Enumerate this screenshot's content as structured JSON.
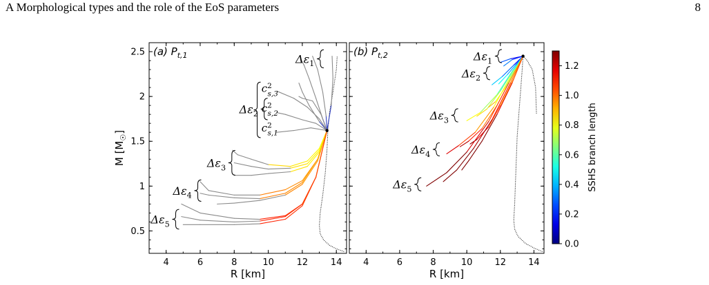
{
  "header": {
    "section": "A   Morphological types and the role of the EoS parameters",
    "page_number": "8"
  },
  "colorbar": {
    "label": "SSHS branch length",
    "ticks": [
      "0.0",
      "0.2",
      "0.4",
      "0.6",
      "0.8",
      "1.0",
      "1.2"
    ],
    "tick_values": [
      0.0,
      0.2,
      0.4,
      0.6,
      0.8,
      1.0,
      1.2
    ],
    "range": [
      0,
      1.3
    ],
    "colormap": "jet"
  },
  "chart_data": [
    {
      "type": "line",
      "panel_label": "(a) P",
      "panel_sub": "t,1",
      "xlabel": "R [km]",
      "ylabel": "M [M",
      "ylabel_sym": "☉",
      "ylabel_close": "]",
      "xlim": [
        3,
        14.6
      ],
      "ylim": [
        0.25,
        2.6
      ],
      "xticks": [
        4,
        6,
        8,
        10,
        12,
        14
      ],
      "yticks": [
        0.5,
        1,
        1.5,
        2,
        2.5
      ],
      "xtick_labels": [
        "4",
        "6",
        "8",
        "10",
        "12",
        "14"
      ],
      "ytick_labels": [
        "0.5",
        "1",
        "1.5",
        "2",
        "2.5"
      ],
      "transition_point": [
        13.45,
        1.62
      ],
      "annotations": [
        {
          "base": "Δε",
          "sub": "1",
          "x": 11.6,
          "y": 2.42
        },
        {
          "base": "Δε",
          "sub": "2",
          "x": 8.3,
          "y": 1.86
        },
        {
          "base": "Δε",
          "sub": "3",
          "x": 6.4,
          "y": 1.26
        },
        {
          "base": "Δε",
          "sub": "4",
          "x": 4.4,
          "y": 0.95
        },
        {
          "base": "Δε",
          "sub": "5",
          "x": 3.1,
          "y": 0.63
        }
      ],
      "sound_speed_labels": [
        {
          "base": "c",
          "sup": "2",
          "sub": "s,3",
          "x": 9.6,
          "y": 2.08
        },
        {
          "base": "c",
          "sup": "2",
          "sub": "s,2",
          "x": 9.6,
          "y": 1.86
        },
        {
          "base": "c",
          "sup": "2",
          "sub": "s,1",
          "x": 9.6,
          "y": 1.64
        }
      ],
      "hadronic_branch": [
        [
          14.45,
          0.27
        ],
        [
          14.0,
          0.3
        ],
        [
          13.6,
          0.34
        ],
        [
          13.25,
          0.4
        ],
        [
          13.05,
          0.47
        ],
        [
          13.0,
          0.56
        ],
        [
          13.05,
          0.7
        ],
        [
          13.2,
          0.9
        ],
        [
          13.35,
          1.15
        ],
        [
          13.45,
          1.4
        ],
        [
          13.5,
          1.62
        ],
        [
          13.6,
          1.82
        ],
        [
          13.8,
          2.05
        ],
        [
          14.0,
          2.3
        ],
        [
          14.05,
          2.45
        ]
      ],
      "series": [
        {
          "group": 1,
          "points": [
            [
              13.45,
              1.62
            ],
            [
              13.0,
              1.72
            ],
            [
              12.4,
              1.9
            ],
            [
              12.0,
              2.05
            ],
            [
              11.8,
              2.15
            ]
          ],
          "c0": 0.0
        },
        {
          "group": 1,
          "points": [
            [
              13.45,
              1.62
            ],
            [
              13.2,
              1.75
            ],
            [
              12.8,
              1.98
            ],
            [
              12.4,
              2.2
            ],
            [
              12.1,
              2.35
            ],
            [
              11.9,
              2.42
            ]
          ],
          "c0": 0.0
        },
        {
          "group": 1,
          "points": [
            [
              13.45,
              1.62
            ],
            [
              13.4,
              1.78
            ],
            [
              13.2,
              2.05
            ],
            [
              12.9,
              2.3
            ],
            [
              12.6,
              2.45
            ]
          ],
          "c0": 0.0
        },
        {
          "group": 1,
          "points": [
            [
              13.45,
              1.62
            ],
            [
              13.7,
              1.9
            ],
            [
              13.8,
              2.2
            ],
            [
              13.75,
              2.45
            ]
          ],
          "c0": 0.0
        },
        {
          "group": 2,
          "points": [
            [
              13.45,
              1.62
            ],
            [
              12.5,
              1.65
            ],
            [
              11.5,
              1.62
            ],
            [
              10.5,
              1.6
            ]
          ],
          "c0": 0.0
        },
        {
          "group": 2,
          "points": [
            [
              13.45,
              1.62
            ],
            [
              12.8,
              1.7
            ],
            [
              12.0,
              1.74
            ],
            [
              11.0,
              1.8
            ],
            [
              10.5,
              1.82
            ]
          ],
          "c0": 0.0
        },
        {
          "group": 2,
          "points": [
            [
              13.45,
              1.62
            ],
            [
              13.0,
              1.75
            ],
            [
              12.3,
              1.88
            ],
            [
              11.5,
              1.98
            ],
            [
              10.5,
              2.06
            ]
          ],
          "c0": 0.0
        },
        {
          "group": 2,
          "points": [
            [
              13.45,
              1.62
            ],
            [
              13.1,
              1.8
            ],
            [
              12.6,
              1.95
            ],
            [
              12.0,
              1.98
            ],
            [
              11.8,
              2.0
            ]
          ],
          "c0": 0.0
        },
        {
          "group": 3,
          "points": [
            [
              13.45,
              1.62
            ],
            [
              13.0,
              1.42
            ],
            [
              12.3,
              1.28
            ],
            [
              11.3,
              1.22
            ],
            [
              10.0,
              1.24
            ],
            [
              9.0,
              1.3
            ],
            [
              8.2,
              1.35
            ],
            [
              7.9,
              1.4
            ]
          ],
          "c0": 0.0
        },
        {
          "group": 3,
          "points": [
            [
              13.45,
              1.62
            ],
            [
              13.0,
              1.4
            ],
            [
              12.3,
              1.25
            ],
            [
              11.3,
              1.2
            ],
            [
              10.0,
              1.19
            ],
            [
              9.0,
              1.22
            ],
            [
              8.0,
              1.26
            ]
          ],
          "c0": 0.0
        },
        {
          "group": 3,
          "points": [
            [
              13.45,
              1.62
            ],
            [
              13.0,
              1.38
            ],
            [
              12.3,
              1.22
            ],
            [
              11.3,
              1.16
            ],
            [
              10.0,
              1.14
            ],
            [
              9.0,
              1.12
            ],
            [
              8.0,
              1.12
            ]
          ],
          "c0": 0.0
        },
        {
          "group": 4,
          "points": [
            [
              13.45,
              1.62
            ],
            [
              12.9,
              1.3
            ],
            [
              12.0,
              1.06
            ],
            [
              11.0,
              0.96
            ],
            [
              9.5,
              0.9
            ],
            [
              8.0,
              0.9
            ],
            [
              6.5,
              0.95
            ],
            [
              6.0,
              1.05
            ]
          ],
          "c0": 0.0
        },
        {
          "group": 4,
          "points": [
            [
              13.45,
              1.62
            ],
            [
              12.9,
              1.3
            ],
            [
              12.0,
              1.04
            ],
            [
              11.0,
              0.92
            ],
            [
              9.5,
              0.86
            ],
            [
              8.0,
              0.87
            ],
            [
              6.5,
              0.9
            ],
            [
              6.0,
              0.92
            ]
          ],
          "c0": 0.0
        },
        {
          "group": 4,
          "points": [
            [
              13.45,
              1.62
            ],
            [
              12.9,
              1.28
            ],
            [
              12.0,
              1.02
            ],
            [
              11.0,
              0.9
            ],
            [
              9.5,
              0.84
            ],
            [
              8.0,
              0.81
            ],
            [
              7.0,
              0.8
            ]
          ],
          "c0": 0.0
        },
        {
          "group": 5,
          "points": [
            [
              13.45,
              1.62
            ],
            [
              12.8,
              1.1
            ],
            [
              12.0,
              0.8
            ],
            [
              11.0,
              0.67
            ],
            [
              9.5,
              0.63
            ],
            [
              8.0,
              0.64
            ],
            [
              6.0,
              0.7
            ],
            [
              4.9,
              0.8
            ]
          ],
          "c0": 0.0
        },
        {
          "group": 5,
          "points": [
            [
              13.45,
              1.62
            ],
            [
              12.8,
              1.1
            ],
            [
              12.0,
              0.8
            ],
            [
              11.0,
              0.66
            ],
            [
              9.5,
              0.61
            ],
            [
              8.0,
              0.6
            ],
            [
              6.0,
              0.62
            ],
            [
              4.9,
              0.66
            ]
          ],
          "c0": 0.0
        },
        {
          "group": 5,
          "points": [
            [
              13.45,
              1.62
            ],
            [
              12.8,
              1.1
            ],
            [
              12.0,
              0.78
            ],
            [
              11.0,
              0.63
            ],
            [
              9.5,
              0.58
            ],
            [
              8.0,
              0.57
            ],
            [
              6.0,
              0.57
            ],
            [
              5.0,
              0.57
            ]
          ],
          "c0": 0.0
        }
      ]
    },
    {
      "type": "line",
      "panel_label": "(b) P",
      "panel_sub": "t,2",
      "xlabel": "R [km]",
      "xlim": [
        3,
        14.6
      ],
      "ylim": [
        0.25,
        2.6
      ],
      "xticks": [
        4,
        6,
        8,
        10,
        12,
        14
      ],
      "xtick_labels": [
        "4",
        "6",
        "8",
        "10",
        "12",
        "14"
      ],
      "transition_point": [
        13.35,
        2.45
      ],
      "annotations": [
        {
          "base": "Δε",
          "sub": "1",
          "x": 10.4,
          "y": 2.45
        },
        {
          "base": "Δε",
          "sub": "2",
          "x": 9.7,
          "y": 2.26
        },
        {
          "base": "Δε",
          "sub": "3",
          "x": 7.8,
          "y": 1.79
        },
        {
          "base": "Δε",
          "sub": "4",
          "x": 6.7,
          "y": 1.41
        },
        {
          "base": "Δε",
          "sub": "5",
          "x": 5.6,
          "y": 1.02
        }
      ],
      "hadronic_branch": [
        [
          14.5,
          0.27
        ],
        [
          14.0,
          0.31
        ],
        [
          13.5,
          0.36
        ],
        [
          13.05,
          0.44
        ],
        [
          12.85,
          0.52
        ],
        [
          12.8,
          0.62
        ],
        [
          12.85,
          0.8
        ],
        [
          12.9,
          1.05
        ],
        [
          12.95,
          1.3
        ],
        [
          13.0,
          1.55
        ],
        [
          13.1,
          1.8
        ],
        [
          13.2,
          2.05
        ],
        [
          13.3,
          2.3
        ],
        [
          13.35,
          2.45
        ],
        [
          13.6,
          2.4
        ],
        [
          13.9,
          2.3
        ],
        [
          14.1,
          2.1
        ],
        [
          14.15,
          1.8
        ]
      ],
      "series": [
        {
          "group": 1,
          "points": [
            [
              13.35,
              2.45
            ],
            [
              12.6,
              2.42
            ],
            [
              12.0,
              2.38
            ]
          ],
          "c0": 0.15
        },
        {
          "group": 1,
          "points": [
            [
              13.35,
              2.45
            ],
            [
              12.7,
              2.41
            ],
            [
              12.2,
              2.34
            ]
          ],
          "c0": 0.2
        },
        {
          "group": 2,
          "points": [
            [
              13.35,
              2.45
            ],
            [
              12.8,
              2.35
            ],
            [
              12.1,
              2.22
            ],
            [
              11.5,
              2.13
            ]
          ],
          "c0": 0.18
        },
        {
          "group": 2,
          "points": [
            [
              13.35,
              2.45
            ],
            [
              12.9,
              2.35
            ],
            [
              12.4,
              2.24
            ],
            [
              11.9,
              2.14
            ]
          ],
          "c0": 0.25
        },
        {
          "group": 3,
          "points": [
            [
              13.35,
              2.45
            ],
            [
              12.7,
              2.28
            ],
            [
              11.8,
              2.02
            ],
            [
              10.8,
              1.82
            ],
            [
              10.0,
              1.73
            ]
          ],
          "c0": 0.45
        },
        {
          "group": 3,
          "points": [
            [
              13.35,
              2.45
            ],
            [
              12.8,
              2.3
            ],
            [
              12.0,
              2.06
            ],
            [
              11.2,
              1.86
            ],
            [
              10.6,
              1.78
            ]
          ],
          "c0": 0.5
        },
        {
          "group": 3,
          "points": [
            [
              13.35,
              2.45
            ],
            [
              12.9,
              2.3
            ],
            [
              12.3,
              2.1
            ],
            [
              11.7,
              1.94
            ],
            [
              11.3,
              1.88
            ]
          ],
          "c0": 0.55
        },
        {
          "group": 4,
          "points": [
            [
              13.35,
              2.45
            ],
            [
              12.6,
              2.22
            ],
            [
              11.6,
              1.88
            ],
            [
              10.5,
              1.6
            ],
            [
              9.5,
              1.45
            ],
            [
              8.8,
              1.36
            ]
          ],
          "c0": 0.7
        },
        {
          "group": 4,
          "points": [
            [
              13.35,
              2.45
            ],
            [
              12.7,
              2.22
            ],
            [
              11.8,
              1.9
            ],
            [
              10.9,
              1.64
            ],
            [
              10.1,
              1.5
            ],
            [
              9.6,
              1.44
            ]
          ],
          "c0": 0.75
        },
        {
          "group": 4,
          "points": [
            [
              13.35,
              2.45
            ],
            [
              12.8,
              2.2
            ],
            [
              12.0,
              1.9
            ],
            [
              11.3,
              1.66
            ],
            [
              10.6,
              1.52
            ],
            [
              10.2,
              1.47
            ]
          ],
          "c0": 0.8
        },
        {
          "group": 5,
          "points": [
            [
              13.35,
              2.45
            ],
            [
              12.5,
              2.15
            ],
            [
              11.3,
              1.72
            ],
            [
              10.0,
              1.38
            ],
            [
              8.8,
              1.15
            ],
            [
              7.6,
              1.0
            ]
          ],
          "c0": 0.95
        },
        {
          "group": 5,
          "points": [
            [
              13.35,
              2.45
            ],
            [
              12.6,
              2.15
            ],
            [
              11.5,
              1.74
            ],
            [
              10.4,
              1.42
            ],
            [
              9.4,
              1.18
            ],
            [
              8.6,
              1.05
            ]
          ],
          "c0": 1.0
        },
        {
          "group": 5,
          "points": [
            [
              13.35,
              2.45
            ],
            [
              12.7,
              2.15
            ],
            [
              11.8,
              1.8
            ],
            [
              10.9,
              1.5
            ],
            [
              10.1,
              1.28
            ],
            [
              9.7,
              1.18
            ]
          ],
          "c0": 1.05
        }
      ]
    }
  ]
}
